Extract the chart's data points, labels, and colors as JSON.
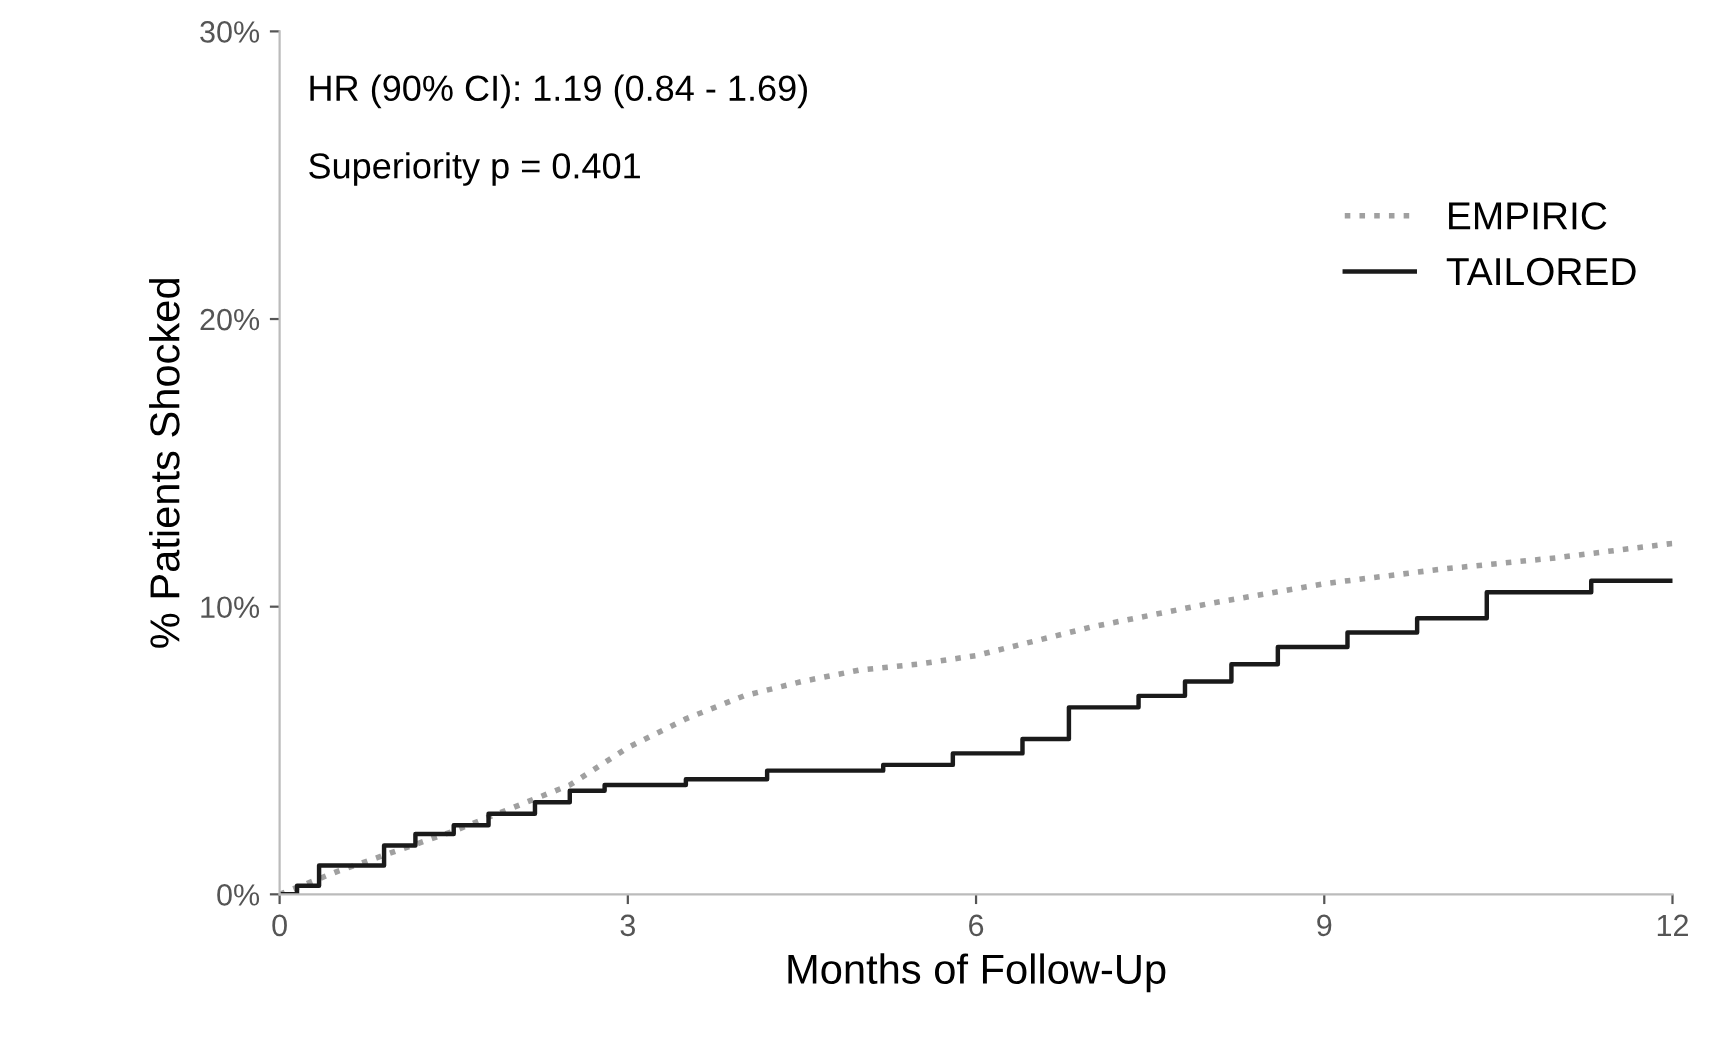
{
  "chart_data": {
    "type": "line",
    "xlabel": "Months of Follow-Up",
    "ylabel": "% Patients Shocked",
    "xlim": [
      0,
      12
    ],
    "xticks": [
      0,
      3,
      6,
      9,
      12
    ],
    "ylim": [
      0,
      30
    ],
    "yticks": [
      {
        "value": 0,
        "label": "0%"
      },
      {
        "value": 10,
        "label": "10%"
      },
      {
        "value": 20,
        "label": "20%"
      },
      {
        "value": 30,
        "label": "30%"
      }
    ],
    "grid": false,
    "legend": "right",
    "marker": "none",
    "annotations": [
      "HR (90% CI): 1.19 (0.84 - 1.69)",
      "Superiority p = 0.401"
    ],
    "series": [
      {
        "name": "EMPIRIC",
        "color": "#a0a0a0",
        "line_style": "dotted",
        "x": [
          0,
          0.5,
          1,
          1.5,
          2,
          2.5,
          3,
          3.5,
          4,
          4.5,
          5,
          5.5,
          6,
          7,
          8,
          9,
          10,
          11,
          12
        ],
        "values": [
          0,
          0.8,
          1.5,
          2.2,
          3.0,
          3.8,
          5.1,
          6.1,
          6.9,
          7.4,
          7.8,
          8.0,
          8.3,
          9.3,
          10.1,
          10.8,
          11.3,
          11.7,
          12.2
        ]
      },
      {
        "name": "TAILORED",
        "color": "#1a1a1a",
        "type": "step",
        "line_style": "solid",
        "x": [
          0,
          0.15,
          0.34,
          0.9,
          1.17,
          1.5,
          1.8,
          2.2,
          2.5,
          2.8,
          3.5,
          4.2,
          5.2,
          5.8,
          6.4,
          6.8,
          7.4,
          7.8,
          8.2,
          8.6,
          9.2,
          9.8,
          10.4,
          11.3,
          12
        ],
        "values": [
          0,
          0.3,
          1.0,
          1.7,
          2.1,
          2.4,
          2.8,
          3.2,
          3.6,
          3.8,
          4.0,
          4.3,
          4.5,
          4.9,
          5.4,
          6.5,
          6.9,
          7.4,
          8.0,
          8.6,
          9.1,
          9.6,
          10.5,
          10.9,
          10.9
        ]
      }
    ]
  }
}
